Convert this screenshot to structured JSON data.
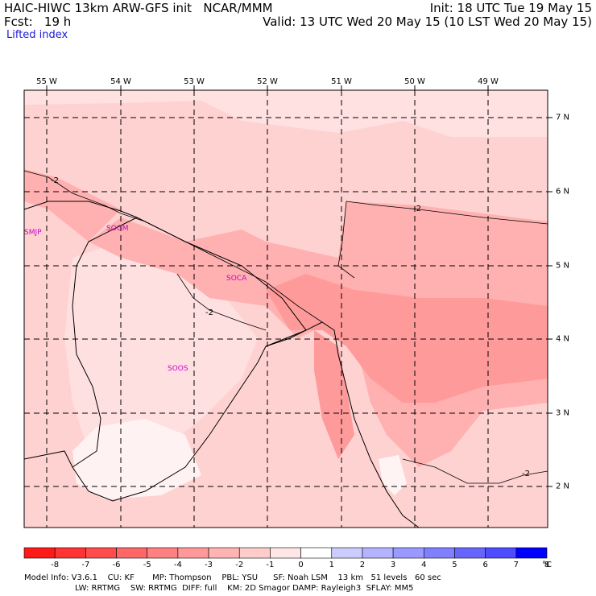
{
  "header": {
    "title_left": "HAIC-HIWC 13km ARW-GFS init   NCAR/MMM",
    "fcst_left": "Fcst:   19 h",
    "init_right": "Init: 18 UTC Tue 19 May 15",
    "valid_right": "Valid: 13 UTC Wed 20 May 15 (10 LST Wed 20 May 15)",
    "field": "Lifted index"
  },
  "map": {
    "lon_labels": [
      "55 W",
      "54 W",
      "53 W",
      "52 W",
      "51 W",
      "50 W",
      "49 W"
    ],
    "lat_labels": [
      "7 N",
      "6 N",
      "5 N",
      "4 N",
      "3 N",
      "2 N"
    ],
    "stations": [
      "SMJP",
      "SOGM",
      "SOCA",
      "SOOS"
    ],
    "contour_labels": [
      "-2",
      "-2",
      "-2",
      "-2"
    ]
  },
  "colorbar": {
    "ticks": [
      "-8",
      "-7",
      "-6",
      "-5",
      "-4",
      "-3",
      "-2",
      "-1",
      "0",
      "1",
      "2",
      "3",
      "4",
      "5",
      "6",
      "7",
      "8"
    ],
    "unit": "°C",
    "colors": [
      "#ff1a1a",
      "#ff3333",
      "#ff4d4d",
      "#ff6666",
      "#ff8080",
      "#ff9999",
      "#ffb3b3",
      "#ffcccc",
      "#ffe6e6",
      "#ffffff",
      "#ccccff",
      "#b3b3ff",
      "#9999ff",
      "#8080ff",
      "#6666ff",
      "#4d4dff",
      "#0000ff"
    ]
  },
  "footer": {
    "line1": "Model Info: V3.6.1    CU: KF       MP: Thompson    PBL: YSU      SF: Noah LSM    13 km   51 levels   60 sec",
    "line2": "LW: RRTMG    SW: RRTMG  DIFF: full    KM: 2D Smagor DAMP: Rayleigh3  SFLAY: MM5"
  }
}
